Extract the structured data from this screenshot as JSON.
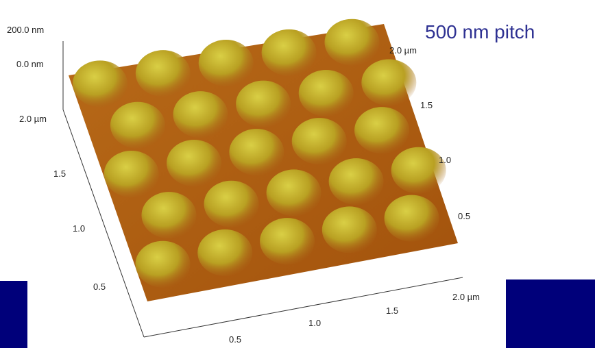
{
  "title": "500 nm pitch",
  "z_axis": {
    "labels": [
      "200.0 nm",
      "0.0 nm"
    ]
  },
  "left_axis": {
    "labels": [
      "2.0 µm",
      "1.5",
      "1.0",
      "0.5"
    ]
  },
  "bottom_axis": {
    "labels": [
      "0.5",
      "1.0",
      "1.5",
      "2.0 µm"
    ]
  },
  "right_axis": {
    "labels": [
      "2.0 µm",
      "1.5",
      "1.0",
      "0.5"
    ]
  }
}
